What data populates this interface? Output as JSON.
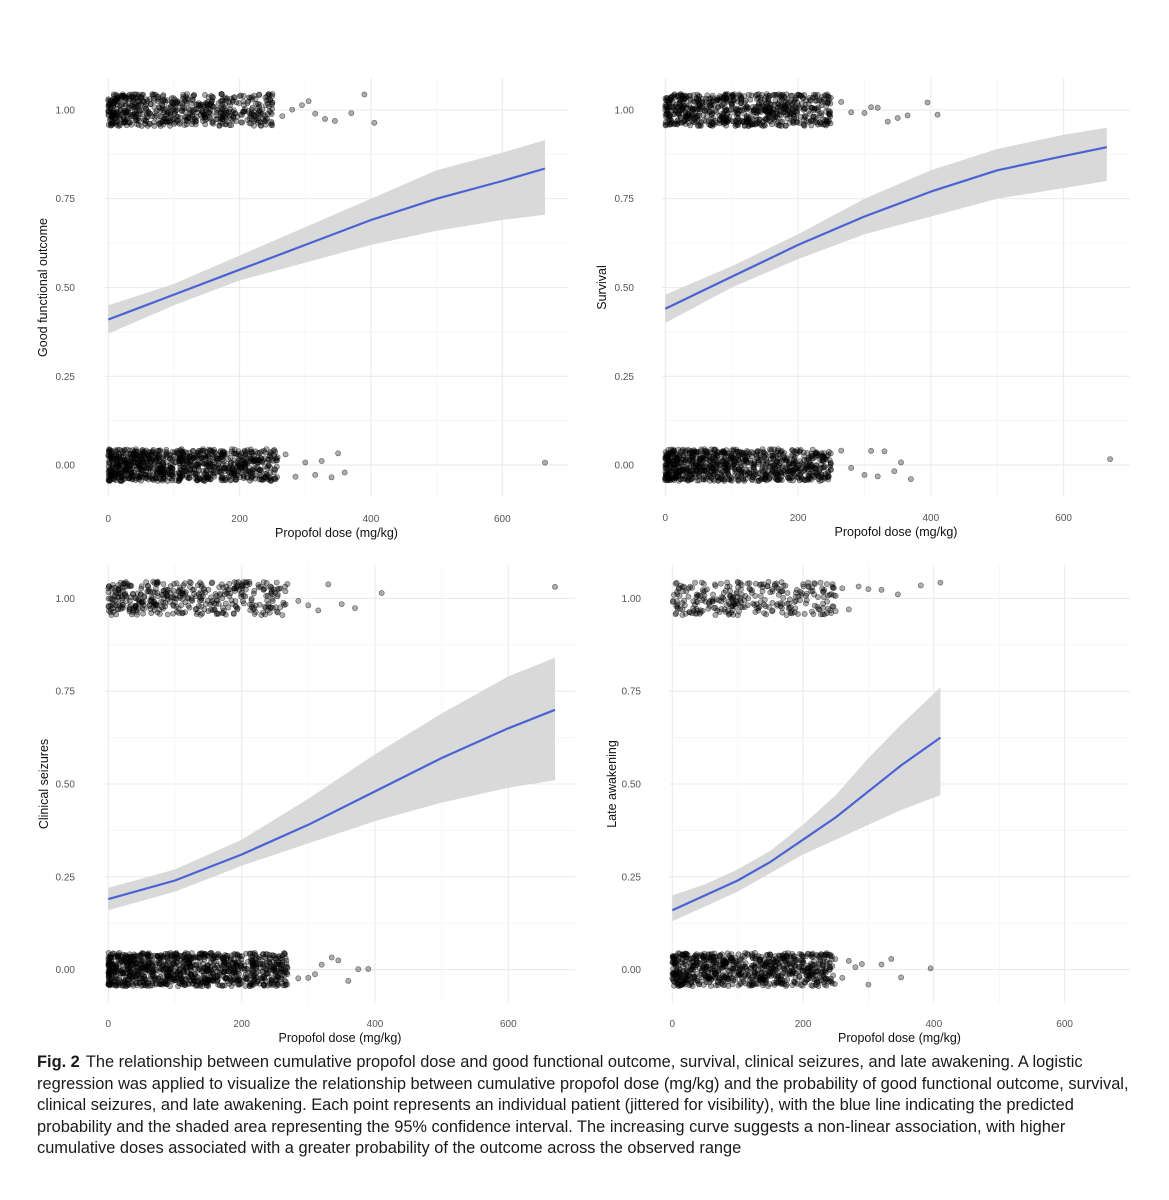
{
  "caption": {
    "label": "Fig. 2",
    "text": "The relationship between cumulative propofol dose and good functional outcome, survival, clinical seizures, and late awakening. A logistic regression was applied to visualize the relationship between cumulative propofol dose (mg/kg) and the probability of good functional outcome, survival, clinical seizures, and late awakening. Each point represents an individual patient (jittered for visibility), with the blue line indicating the predicted probability and the shaded area representing the 95% confidence interval. The increasing curve suggests a non-linear association, with higher cumulative doses associated with a greater probability of the outcome across the observed range"
  },
  "colors": {
    "line": "#4a63d4",
    "ribbon": "#d9d9d9",
    "points": "#000000",
    "grid": "#ebebeb"
  },
  "chart_data": [
    {
      "type": "scatter",
      "title": "",
      "xlabel": "Propofol dose (mg/kg)",
      "ylabel": "Good functional outcome",
      "xlim": [
        -5,
        700
      ],
      "ylim": [
        -0.09,
        1.09
      ],
      "x_ticks": [
        0,
        200,
        400,
        600
      ],
      "x_tick_labels": [
        "0",
        "200",
        "400",
        "600"
      ],
      "y_ticks": [
        0,
        0.25,
        0.5,
        0.75,
        1
      ],
      "y_tick_labels": [
        "0.00",
        "0.25",
        "0.50",
        "0.75",
        "1.00"
      ],
      "grid": true,
      "fit_line": {
        "x": [
          0,
          100,
          200,
          300,
          400,
          500,
          600,
          665
        ],
        "y": [
          0.41,
          0.48,
          0.55,
          0.62,
          0.69,
          0.75,
          0.8,
          0.835
        ],
        "lower": [
          0.37,
          0.45,
          0.52,
          0.57,
          0.62,
          0.66,
          0.69,
          0.705
        ],
        "upper": [
          0.45,
          0.51,
          0.59,
          0.67,
          0.75,
          0.83,
          0.88,
          0.915
        ]
      },
      "points_group_1": {
        "y": 1,
        "count": 600,
        "dense_x_max": 250,
        "sparse_x": [
          265,
          280,
          295,
          305,
          315,
          330,
          345,
          370,
          390,
          405
        ]
      },
      "points_group_0": {
        "y": 0,
        "count": 900,
        "dense_x_max": 260,
        "sparse_x": [
          270,
          285,
          300,
          315,
          325,
          340,
          350,
          360,
          665
        ]
      }
    },
    {
      "type": "scatter",
      "title": "",
      "xlabel": "Propofol dose (mg/kg)",
      "ylabel": "Survival",
      "xlim": [
        -5,
        700
      ],
      "ylim": [
        -0.09,
        1.09
      ],
      "x_ticks": [
        0,
        200,
        400,
        600
      ],
      "x_tick_labels": [
        "0",
        "200",
        "400",
        "600"
      ],
      "y_ticks": [
        0,
        0.25,
        0.5,
        0.75,
        1
      ],
      "y_tick_labels": [
        "0.00",
        "0.25",
        "0.50",
        "0.75",
        "1.00"
      ],
      "grid": true,
      "fit_line": {
        "x": [
          0,
          100,
          200,
          300,
          400,
          500,
          600,
          665
        ],
        "y": [
          0.44,
          0.53,
          0.62,
          0.7,
          0.77,
          0.83,
          0.87,
          0.895
        ],
        "lower": [
          0.4,
          0.5,
          0.58,
          0.65,
          0.7,
          0.75,
          0.78,
          0.8
        ],
        "upper": [
          0.48,
          0.56,
          0.65,
          0.75,
          0.83,
          0.89,
          0.93,
          0.95
        ]
      },
      "points_group_1": {
        "y": 1,
        "count": 700,
        "dense_x_max": 250,
        "sparse_x": [
          265,
          280,
          300,
          310,
          320,
          335,
          350,
          365,
          395,
          410
        ]
      },
      "points_group_0": {
        "y": 0,
        "count": 850,
        "dense_x_max": 250,
        "sparse_x": [
          265,
          280,
          300,
          310,
          320,
          330,
          345,
          355,
          370,
          670
        ]
      }
    },
    {
      "type": "scatter",
      "title": "",
      "xlabel": "Propofol dose (mg/kg)",
      "ylabel": "Clinical seizures",
      "xlim": [
        -5,
        700
      ],
      "ylim": [
        -0.09,
        1.09
      ],
      "x_ticks": [
        0,
        200,
        400,
        600
      ],
      "x_tick_labels": [
        "0",
        "200",
        "400",
        "600"
      ],
      "y_ticks": [
        0,
        0.25,
        0.5,
        0.75,
        1
      ],
      "y_tick_labels": [
        "0.00",
        "0.25",
        "0.50",
        "0.75",
        "1.00"
      ],
      "grid": true,
      "fit_line": {
        "x": [
          0,
          100,
          200,
          300,
          400,
          500,
          600,
          670
        ],
        "y": [
          0.19,
          0.24,
          0.31,
          0.39,
          0.48,
          0.57,
          0.65,
          0.7
        ],
        "lower": [
          0.16,
          0.21,
          0.28,
          0.34,
          0.4,
          0.45,
          0.49,
          0.51
        ],
        "upper": [
          0.22,
          0.27,
          0.35,
          0.46,
          0.58,
          0.69,
          0.79,
          0.84
        ]
      },
      "points_group_1": {
        "y": 1,
        "count": 400,
        "dense_x_max": 270,
        "sparse_x": [
          285,
          300,
          315,
          330,
          350,
          370,
          410,
          670
        ]
      },
      "points_group_0": {
        "y": 0,
        "count": 1000,
        "dense_x_max": 270,
        "sparse_x": [
          285,
          300,
          310,
          320,
          335,
          345,
          360,
          375,
          390
        ]
      }
    },
    {
      "type": "scatter",
      "title": "",
      "xlabel": "Propofol dose (mg/kg)",
      "ylabel": "Late awakening",
      "xlim": [
        -5,
        700
      ],
      "ylim": [
        -0.09,
        1.09
      ],
      "x_ticks": [
        0,
        200,
        400,
        600
      ],
      "x_tick_labels": [
        "0",
        "200",
        "400",
        "600"
      ],
      "y_ticks": [
        0,
        0.25,
        0.5,
        0.75,
        1
      ],
      "y_tick_labels": [
        "0.00",
        "0.25",
        "0.50",
        "0.75",
        "1.00"
      ],
      "grid": true,
      "fit_line": {
        "x": [
          0,
          50,
          100,
          150,
          200,
          250,
          300,
          350,
          410
        ],
        "y": [
          0.16,
          0.2,
          0.24,
          0.29,
          0.35,
          0.41,
          0.48,
          0.55,
          0.625
        ],
        "lower": [
          0.13,
          0.17,
          0.21,
          0.26,
          0.31,
          0.35,
          0.39,
          0.43,
          0.47
        ],
        "upper": [
          0.2,
          0.23,
          0.27,
          0.32,
          0.39,
          0.47,
          0.57,
          0.66,
          0.76
        ]
      },
      "points_group_1": {
        "y": 1,
        "count": 280,
        "dense_x_max": 250,
        "sparse_x": [
          260,
          270,
          285,
          300,
          320,
          345,
          380,
          410
        ]
      },
      "points_group_0": {
        "y": 0,
        "count": 750,
        "dense_x_max": 250,
        "sparse_x": [
          260,
          270,
          280,
          290,
          300,
          320,
          335,
          350,
          395
        ]
      }
    }
  ]
}
